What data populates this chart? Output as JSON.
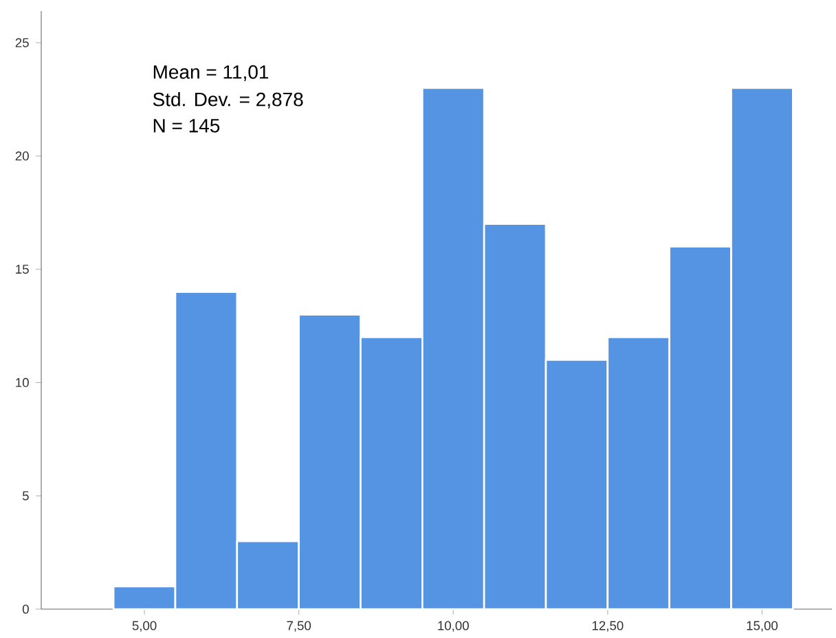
{
  "chart_data": {
    "type": "histogram",
    "color": "#5593e3",
    "bins": [
      4.5,
      5.5,
      6.5,
      7.5,
      8.5,
      9.5,
      10.5,
      11.5,
      12.5,
      13.5,
      14.5,
      15.5
    ],
    "values": [
      1,
      14,
      3,
      13,
      12,
      23,
      17,
      11,
      12,
      16,
      23
    ],
    "xlim": [
      3.33,
      16.13
    ],
    "ylim": [
      0,
      26.4
    ],
    "xticks": [
      {
        "value": 5,
        "label": "5,00"
      },
      {
        "value": 7.5,
        "label": "7,50"
      },
      {
        "value": 10,
        "label": "10,00"
      },
      {
        "value": 12.5,
        "label": "12,50"
      },
      {
        "value": 15,
        "label": "15,00"
      }
    ],
    "yticks": [
      0,
      5,
      10,
      15,
      20,
      25
    ],
    "grid": false,
    "annotations": [
      "Mean = 11,01",
      "Std. Dev. = 2,878",
      "N = 145"
    ]
  }
}
